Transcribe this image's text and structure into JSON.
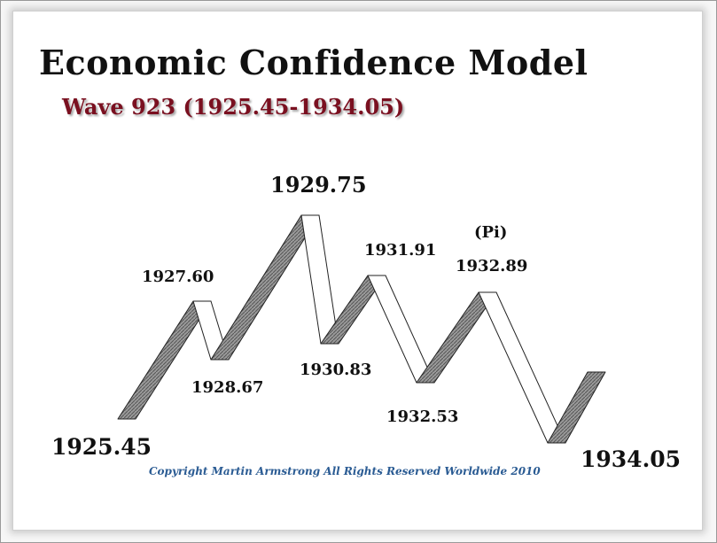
{
  "title": "Economic Confidence Model",
  "subtitle": "Wave 923 (1925.45-1934.05)",
  "copyright": "Copyright Martin Armstrong All Rights Reserved Worldwide 2010",
  "pi_label": "(Pi)",
  "turning_points": [
    {
      "date": "1925.45",
      "kind": "low"
    },
    {
      "date": "1927.60",
      "kind": "high"
    },
    {
      "date": "1928.67",
      "kind": "low"
    },
    {
      "date": "1929.75",
      "kind": "high"
    },
    {
      "date": "1930.83",
      "kind": "low"
    },
    {
      "date": "1931.91",
      "kind": "high"
    },
    {
      "date": "1932.53",
      "kind": "low"
    },
    {
      "date": "1932.89",
      "kind": "high"
    },
    {
      "date": "1934.05",
      "kind": "low"
    }
  ],
  "colors": {
    "subtitle": "#7a1020",
    "copyright": "#2a5b93",
    "rising_ribbon": "#8a8a8a",
    "falling_ribbon": "#ffffff"
  }
}
